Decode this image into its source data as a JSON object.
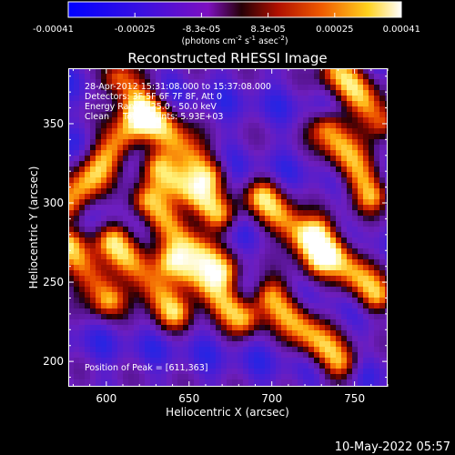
{
  "chart_data": {
    "type": "heatmap",
    "title": "Reconstructed RHESSI Image",
    "xlabel": "Heliocentric X (arcsec)",
    "ylabel": "Heliocentric Y (arcsec)",
    "xlim": [
      577,
      770
    ],
    "ylim": [
      184,
      385
    ],
    "x_ticks": [
      600,
      650,
      700,
      750
    ],
    "y_ticks": [
      200,
      250,
      300,
      350
    ],
    "grid": false,
    "colorbar": {
      "colormap": "rhessi-blue-purple-red-yellow-white",
      "range": [
        -0.00041,
        0.00041
      ],
      "ticks": [
        "-0.00041",
        "-0.00025",
        "-8.3e-05",
        "8.3e-05",
        "0.00025",
        "0.00041"
      ],
      "unit_label": "(photons cm",
      "unit_sup1": "-2",
      "unit_mid1": " s",
      "unit_sup2": "-1",
      "unit_mid2": " asec",
      "unit_sup3": "-2",
      "unit_end": ")"
    },
    "annotations": [
      "28-Apr-2012 15:31:08.000 to 15:37:08.000",
      "Detectors: 3F 5F 6F 7F 8F, Att 0",
      "Energy Range: 25.0 - 50.0 keV",
      "Clean     Total counts: 5.93E+03"
    ],
    "peak_label": "Position of Peak = [611,363]",
    "peak": [
      611,
      363
    ],
    "bright_ridges": [
      {
        "from": [
          578,
          300
        ],
        "to": [
          618,
          352
        ]
      },
      {
        "from": [
          608,
          378
        ],
        "to": [
          660,
          318
        ]
      },
      {
        "from": [
          633,
          322
        ],
        "to": [
          667,
          293
        ]
      },
      {
        "from": [
          625,
          300
        ],
        "to": [
          668,
          257
        ]
      },
      {
        "from": [
          605,
          275
        ],
        "to": [
          640,
          232
        ]
      },
      {
        "from": [
          642,
          262
        ],
        "to": [
          682,
          228
        ]
      },
      {
        "from": [
          695,
          303
        ],
        "to": [
          728,
          266
        ]
      },
      {
        "from": [
          735,
          346
        ],
        "to": [
          760,
          306
        ]
      },
      {
        "from": [
          728,
          280
        ],
        "to": [
          762,
          242
        ]
      },
      {
        "from": [
          740,
          383
        ],
        "to": [
          766,
          352
        ]
      },
      {
        "from": [
          578,
          272
        ],
        "to": [
          600,
          240
        ]
      },
      {
        "from": [
          700,
          240
        ],
        "to": [
          740,
          200
        ]
      }
    ]
  },
  "footer": {
    "date": "10-May-2022 05:57"
  }
}
